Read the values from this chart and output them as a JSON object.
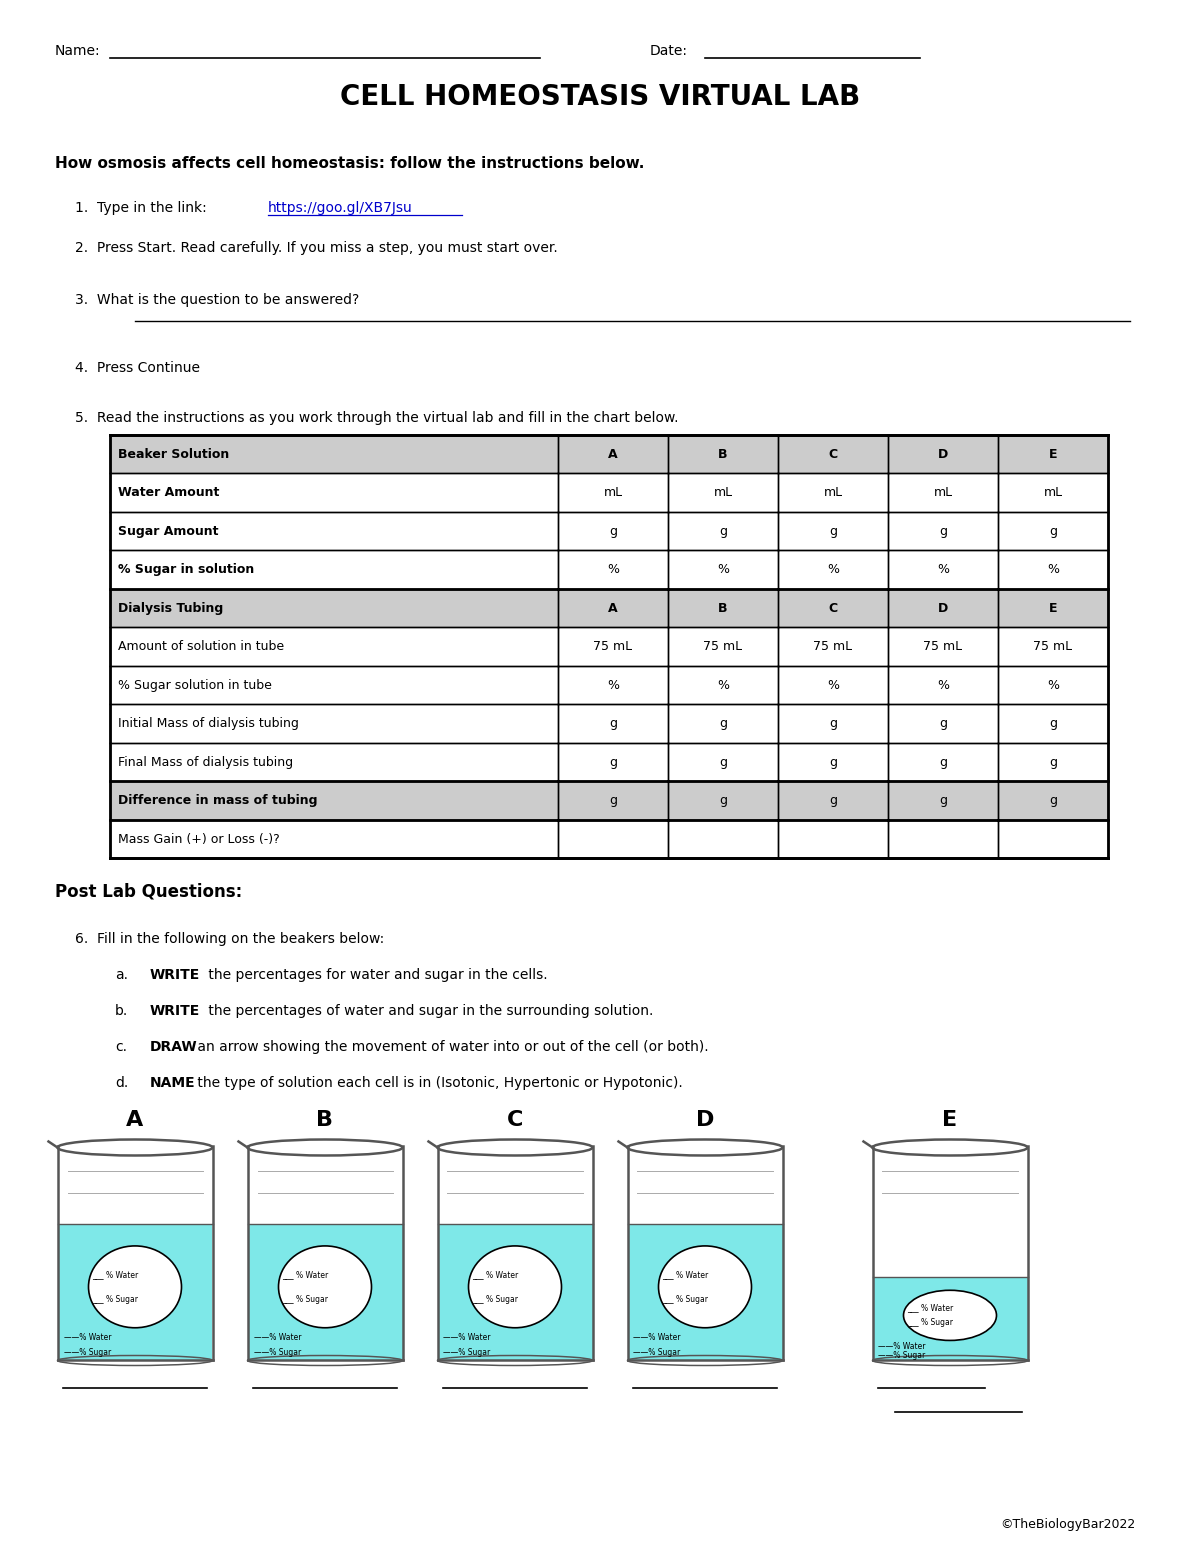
{
  "title": "CELL HOMEOSTASIS VIRTUAL LAB",
  "name_label": "Name:",
  "date_label": "Date:",
  "subtitle": "How osmosis affects cell homeostasis: follow the instructions below.",
  "link_text": "https://goo.gl/XB7Jsu",
  "table_headers_beaker": [
    "Beaker Solution",
    "A",
    "B",
    "C",
    "D",
    "E"
  ],
  "table_rows_beaker": [
    [
      "Water Amount",
      "mL",
      "mL",
      "mL",
      "mL",
      "mL"
    ],
    [
      "Sugar Amount",
      "g",
      "g",
      "g",
      "g",
      "g"
    ],
    [
      "% Sugar in solution",
      "%",
      "%",
      "%",
      "%",
      "%"
    ]
  ],
  "table_headers_dialysis": [
    "Dialysis Tubing",
    "A",
    "B",
    "C",
    "D",
    "E"
  ],
  "table_rows_dialysis": [
    [
      "Amount of solution in tube",
      "75 mL",
      "75 mL",
      "75 mL",
      "75 mL",
      "75 mL"
    ],
    [
      "% Sugar solution in tube",
      "%",
      "%",
      "%",
      "%",
      "%"
    ],
    [
      "Initial Mass of dialysis tubing",
      "g",
      "g",
      "g",
      "g",
      "g"
    ],
    [
      "Final Mass of dialysis tubing",
      "g",
      "g",
      "g",
      "g",
      "g"
    ],
    [
      "Difference in mass of tubing",
      "g",
      "g",
      "g",
      "g",
      "g"
    ],
    [
      "Mass Gain (+) or Loss (-)?",
      "",
      "",
      "",
      "",
      ""
    ]
  ],
  "post_lab_title": "Post Lab Questions:",
  "beaker_labels": [
    "A",
    "B",
    "C",
    "D",
    "E"
  ],
  "copyright": "©TheBiologyBar2022",
  "bg_color": "#ffffff",
  "table_header_bg": "#cccccc",
  "beaker_water_color": "#7ee8e8",
  "beaker_outline_color": "#555555",
  "link_color": "#0000cc",
  "post_lab_items": [
    [
      "6.",
      "  Fill in the following on the beakers below:",
      ""
    ],
    [
      "a.",
      "WRITE",
      " the percentages for water and sugar in the cells."
    ],
    [
      "b.",
      "WRITE",
      " the percentages of water and sugar in the surrounding solution."
    ],
    [
      "c.",
      "DRAW",
      " an arrow showing the movement of water into or out of the cell (or both)."
    ],
    [
      "d.",
      "NAME",
      " the type of solution each cell is in (Isotonic, Hypertonic or Hypotonic)."
    ]
  ],
  "beaker_centers_x": [
    1.35,
    3.25,
    5.15,
    7.05,
    9.5
  ],
  "water_levels": [
    0.62,
    0.62,
    0.62,
    0.62,
    0.38
  ]
}
